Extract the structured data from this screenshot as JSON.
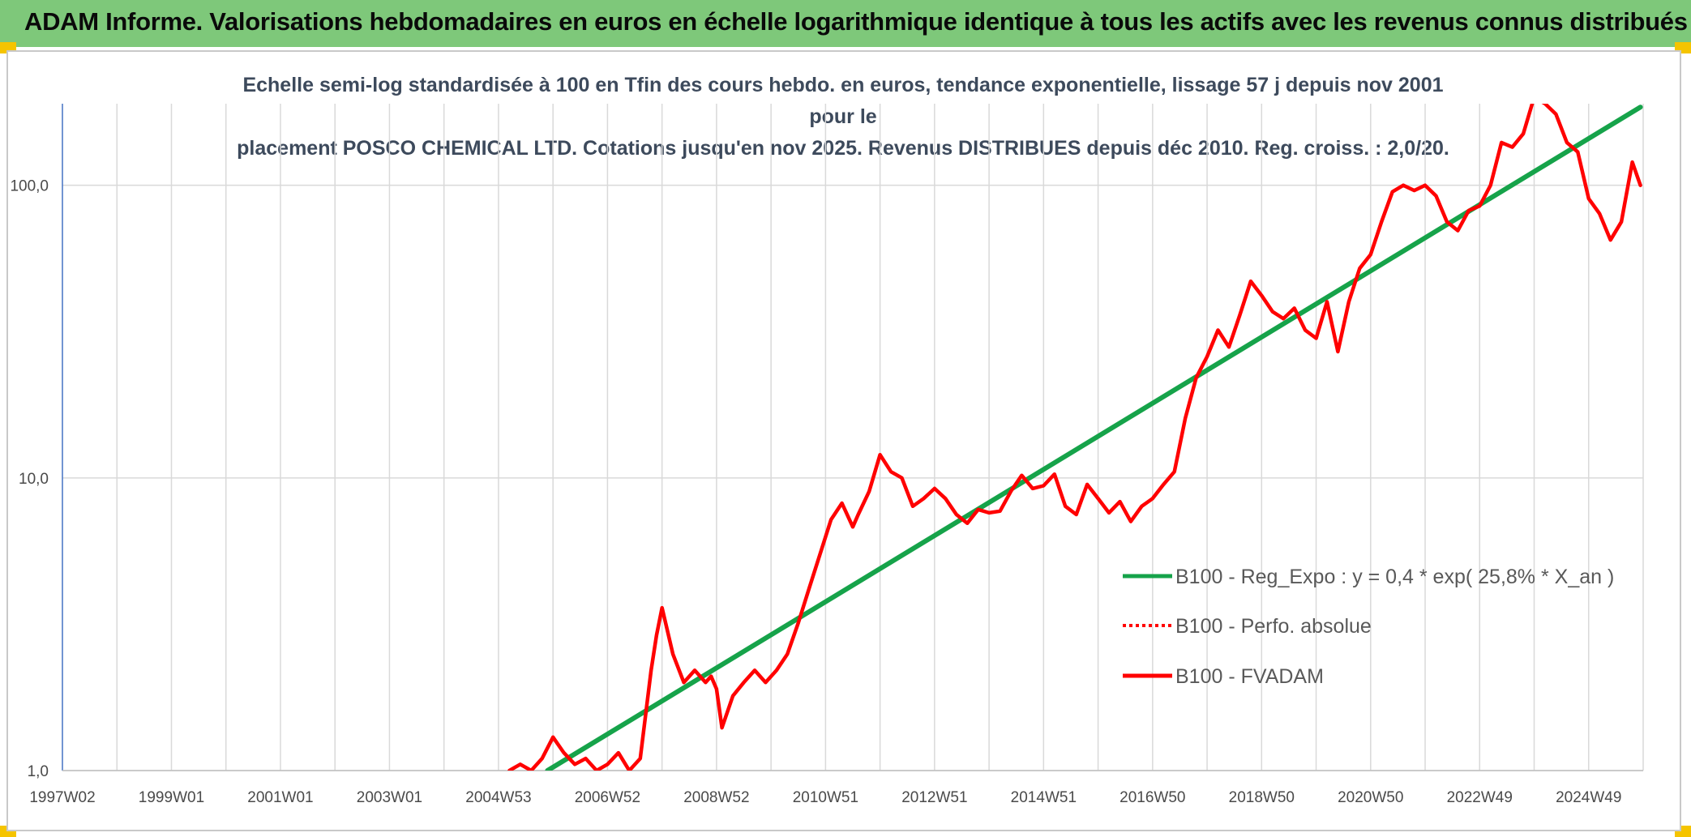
{
  "header": {
    "title": "ADAM Informe. Valorisations hebdomadaires en euros en échelle logarithmique identique à tous les actifs avec les revenus connus distribués"
  },
  "chart_data": {
    "type": "line",
    "title": "Echelle semi-log standardisée à 100 en Tfin des cours hebdo. en euros, tendance exponentielle, lissage 57 j depuis nov 2001 pour le placement POSCO CHEMICAL LTD. Cotations jusqu'en nov 2025. Revenus DISTRIBUES depuis déc 2010. Reg. croiss. : 2,0/20.",
    "title_lines": [
      "Echelle semi-log standardisée à 100 en Tfin des cours hebdo. en euros, tendance exponentielle, lissage 57 j depuis nov 2001 pour le",
      "placement POSCO CHEMICAL LTD. Cotations jusqu'en nov 2025. Revenus DISTRIBUES depuis déc 2010. Reg. croiss. : 2,0/20."
    ],
    "y_scale": "log",
    "ylim": [
      1,
      190
    ],
    "y_ticks": [
      {
        "value": 1,
        "label": "1,0"
      },
      {
        "value": 10,
        "label": "10,0"
      },
      {
        "value": 100,
        "label": "100,0"
      }
    ],
    "xlim": [
      1997.0,
      2026.0
    ],
    "x_ticks": [
      {
        "value": 1997.0,
        "label": "1997W02"
      },
      {
        "value": 1999.0,
        "label": "1999W01"
      },
      {
        "value": 2001.0,
        "label": "2001W01"
      },
      {
        "value": 2003.0,
        "label": "2003W01"
      },
      {
        "value": 2005.0,
        "label": "2004W53"
      },
      {
        "value": 2007.0,
        "label": "2006W52"
      },
      {
        "value": 2009.0,
        "label": "2008W52"
      },
      {
        "value": 2011.0,
        "label": "2010W51"
      },
      {
        "value": 2013.0,
        "label": "2012W51"
      },
      {
        "value": 2015.0,
        "label": "2014W51"
      },
      {
        "value": 2017.0,
        "label": "2016W50"
      },
      {
        "value": 2019.0,
        "label": "2018W50"
      },
      {
        "value": 2021.0,
        "label": "2020W50"
      },
      {
        "value": 2023.0,
        "label": "2022W49"
      },
      {
        "value": 2025.0,
        "label": "2024W49"
      }
    ],
    "grid": true,
    "legend_position": "right",
    "series": [
      {
        "name": "B100 - Reg_Expo : y = 0,4 * exp( 25,8% *  X_an )",
        "color": "#16a34a",
        "style": "solid",
        "x": [
          2005.9,
          2025.95
        ],
        "y": [
          1.0,
          185.0
        ]
      },
      {
        "name": "B100 - Perfo. absolue",
        "color": "#ff0000",
        "style": "dotted",
        "x": [],
        "y": []
      },
      {
        "name": "B100 - FVADAM",
        "color": "#ff0000",
        "style": "solid",
        "x": [
          2005.2,
          2005.4,
          2005.6,
          2005.8,
          2006.0,
          2006.2,
          2006.4,
          2006.6,
          2006.8,
          2007.0,
          2007.2,
          2007.4,
          2007.6,
          2007.8,
          2007.9,
          2008.0,
          2008.2,
          2008.4,
          2008.6,
          2008.8,
          2008.9,
          2009.0,
          2009.1,
          2009.3,
          2009.5,
          2009.7,
          2009.9,
          2010.1,
          2010.3,
          2010.5,
          2010.7,
          2010.9,
          2011.1,
          2011.3,
          2011.5,
          2011.6,
          2011.8,
          2012.0,
          2012.2,
          2012.4,
          2012.6,
          2012.8,
          2013.0,
          2013.2,
          2013.4,
          2013.6,
          2013.8,
          2014.0,
          2014.2,
          2014.4,
          2014.6,
          2014.8,
          2015.0,
          2015.2,
          2015.4,
          2015.6,
          2015.8,
          2016.0,
          2016.2,
          2016.4,
          2016.6,
          2016.8,
          2017.0,
          2017.2,
          2017.4,
          2017.6,
          2017.8,
          2018.0,
          2018.2,
          2018.4,
          2018.6,
          2018.8,
          2019.0,
          2019.2,
          2019.4,
          2019.6,
          2019.8,
          2020.0,
          2020.2,
          2020.4,
          2020.6,
          2020.8,
          2021.0,
          2021.2,
          2021.4,
          2021.6,
          2021.8,
          2022.0,
          2022.2,
          2022.4,
          2022.6,
          2022.8,
          2023.0,
          2023.2,
          2023.4,
          2023.6,
          2023.8,
          2024.0,
          2024.2,
          2024.4,
          2024.6,
          2024.8,
          2025.0,
          2025.2,
          2025.4,
          2025.6,
          2025.8,
          2025.95
        ],
        "y": [
          1.0,
          1.05,
          1.0,
          1.1,
          1.3,
          1.15,
          1.05,
          1.1,
          1.0,
          1.05,
          1.15,
          1.0,
          1.1,
          2.2,
          2.9,
          3.6,
          2.5,
          2.0,
          2.2,
          2.0,
          2.1,
          1.9,
          1.4,
          1.8,
          2.0,
          2.2,
          2.0,
          2.2,
          2.5,
          3.2,
          4.2,
          5.5,
          7.2,
          8.2,
          6.8,
          7.5,
          9.0,
          12.0,
          10.5,
          10.0,
          8.0,
          8.5,
          9.2,
          8.5,
          7.5,
          7.0,
          7.8,
          7.6,
          7.7,
          9.0,
          10.2,
          9.2,
          9.4,
          10.3,
          8.0,
          7.5,
          9.5,
          8.5,
          7.6,
          8.3,
          7.1,
          8.0,
          8.5,
          9.5,
          10.5,
          16.0,
          22.0,
          26.0,
          32.0,
          28.0,
          36.0,
          47.0,
          42.0,
          37.0,
          35.0,
          38.0,
          32.0,
          30.0,
          40.0,
          27.0,
          40.0,
          52.0,
          58.0,
          75.0,
          95.0,
          100.0,
          96.0,
          100.0,
          92.0,
          75.0,
          70.0,
          82.0,
          85.0,
          100.0,
          140.0,
          135.0,
          150.0,
          200.0,
          190.0,
          175.0,
          140.0,
          130.0,
          90.0,
          80.0,
          65.0,
          75.0,
          120.0,
          100.0
        ]
      }
    ]
  }
}
